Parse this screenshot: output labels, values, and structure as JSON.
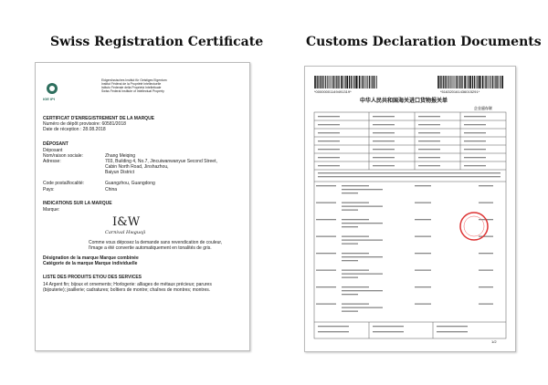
{
  "headings": [
    "Swiss Registration Certificate",
    "Customs Declaration Documents"
  ],
  "certificate": {
    "logo": "IGE IPI",
    "institute": [
      "Eidgenössisches Institut für Geistiges Eigentum",
      "Institut Fédéral de la Propriété Intellectuelle",
      "Istituto Federale della Proprietà Intellettuale",
      "Swiss Federal Institute of Intellectual Property"
    ],
    "title": "CERTIFICAT D'ENREGISTREMENT DE LA MARQUE",
    "deposit_number": "Numéro de dépôt provisoire: 60581/2018",
    "date": "Date de réception : 28.08.2018",
    "section_depositor": "DÉPOSANT",
    "depositor_label": "Déposant",
    "name_label": "Nom/raison sociale:",
    "name": "Zhang Meiqing",
    "address_label": "Adresse:",
    "address": [
      "703, Building 4, No.7, Jincuiwanwanyue Second Street,",
      "Cabin North Road, Jinshazhou,",
      "Baiyun District"
    ],
    "postal_label": "Code postal/localité:",
    "postal": "Guangzhou, Guangdong",
    "country_label": "Pays:",
    "country": "China",
    "section_mark": "INDICATIONS SUR LA MARQUE",
    "mark_label": "Marque:",
    "mark": "I&W",
    "mark_sub": "Carnival Hwguoji",
    "note": "Comme vous déposez la demande sans revendication de couleur, l'image a été convertie automatiquement en tonalités de gris.",
    "designation": "Désignation de la marque Marque combinée",
    "category": "Catégorie de la marque Marque individuelle",
    "section_list": "LISTE DES PRODUITS ET/OU DES SERVICES",
    "list": "14 Argent fin; bijoux et ornements; Horlogerie: alliages de métaux précieux; parures (bijouterie); joaillerie; cadratures; boîtiers de montre; chaînes de montres; montres."
  },
  "customs": {
    "barcode_left": "*00000001149491319*",
    "barcode_right": "*516320161436015291*",
    "title": "中华人民共和国海关进口货物报关单",
    "copy": "企业留存联",
    "page": "1/2"
  }
}
